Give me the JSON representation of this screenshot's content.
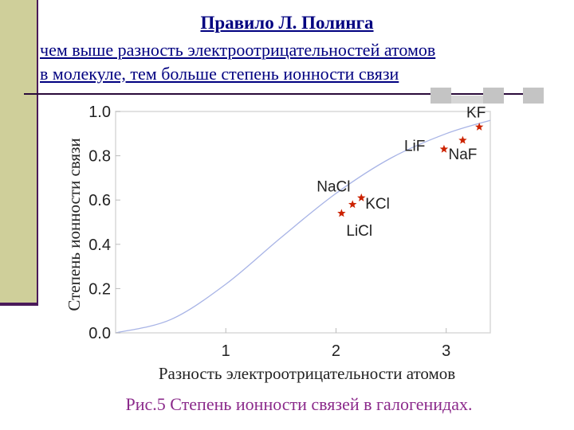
{
  "slide": {
    "title": "Правило Л. Полинга",
    "line1": "чем выше разность электроотрицательностей атомов",
    "line2": "в молекуле, тем больше степень ионности связи",
    "caption": "Рис.5 Степень ионности связей в галогенидах.",
    "colors": {
      "heading": "#000080",
      "caption": "#8b2a8b",
      "curve": "#a8b4e6",
      "marker": "#cc2200",
      "sidebar": "#cfcf9a"
    }
  },
  "chart_data": {
    "type": "scatter",
    "xlabel": "Разность электроотрицательности атомов",
    "ylabel": "Степень ионности связи",
    "xlim": [
      0,
      3.4
    ],
    "ylim": [
      0,
      1.0
    ],
    "xticks": [
      "1",
      "2",
      "3"
    ],
    "xtick_values": [
      1,
      2,
      3
    ],
    "yticks": [
      "0.0",
      "0.2",
      "0.4",
      "0.6",
      "0.8",
      "1.0"
    ],
    "ytick_values": [
      0.0,
      0.2,
      0.4,
      0.6,
      0.8,
      1.0
    ],
    "grid": false,
    "curve": {
      "x": [
        0,
        0.5,
        1.0,
        1.5,
        2.0,
        2.5,
        3.0,
        3.4
      ],
      "y": [
        0.0,
        0.06,
        0.22,
        0.43,
        0.63,
        0.79,
        0.9,
        0.96
      ]
    },
    "points": [
      {
        "label": "KF",
        "x": 3.3,
        "y": 0.93
      },
      {
        "label": "NaF",
        "x": 3.15,
        "y": 0.87
      },
      {
        "label": "LiF",
        "x": 2.98,
        "y": 0.83
      },
      {
        "label": "NaCl",
        "x": 2.23,
        "y": 0.61
      },
      {
        "label": "KCl",
        "x": 2.15,
        "y": 0.58
      },
      {
        "label": "LiCl",
        "x": 2.05,
        "y": 0.54
      }
    ]
  }
}
